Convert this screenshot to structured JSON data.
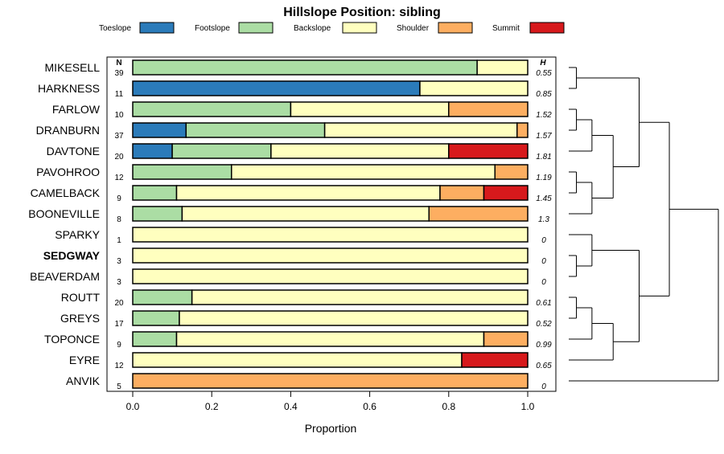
{
  "chart_data": {
    "type": "bar",
    "subtype": "stacked-horizontal-proportion",
    "title": "Hillslope Position: sibling",
    "xlabel": "Proportion",
    "xlim": [
      0,
      1
    ],
    "x_ticks": [
      "0.0",
      "0.2",
      "0.4",
      "0.6",
      "0.8",
      "1.0"
    ],
    "n_header": "N",
    "h_header": "H",
    "legend": [
      {
        "name": "Toeslope",
        "color": "#2b7bba"
      },
      {
        "name": "Footslope",
        "color": "#abdda4"
      },
      {
        "name": "Backslope",
        "color": "#ffffbf"
      },
      {
        "name": "Shoulder",
        "color": "#fdae61"
      },
      {
        "name": "Summit",
        "color": "#d7191c"
      }
    ],
    "highlight": "SEDGWAY",
    "categories": [
      "MIKESELL",
      "HARKNESS",
      "FARLOW",
      "DRANBURN",
      "DAVTONE",
      "PAVOHROO",
      "CAMELBACK",
      "BOONEVILLE",
      "SPARKY",
      "SEDGWAY",
      "BEAVERDAM",
      "ROUTT",
      "GREYS",
      "TOPONCE",
      "EYRE",
      "ANVIK"
    ],
    "n": [
      "39",
      "11",
      "10",
      "37",
      "20",
      "12",
      "9",
      "8",
      "1",
      "3",
      "3",
      "20",
      "17",
      "9",
      "12",
      "5"
    ],
    "h": [
      "0.55",
      "0.85",
      "1.52",
      "1.57",
      "1.81",
      "1.19",
      "1.45",
      "1.3",
      "0",
      "0",
      "0",
      "0.61",
      "0.52",
      "0.99",
      "0.65",
      "0"
    ],
    "series": [
      {
        "name": "Toeslope",
        "values": [
          0,
          0.727,
          0,
          0.135,
          0.1,
          0,
          0,
          0,
          0,
          0,
          0,
          0,
          0,
          0,
          0,
          0
        ]
      },
      {
        "name": "Footslope",
        "values": [
          0.872,
          0,
          0.4,
          0.351,
          0.25,
          0.25,
          0.111,
          0.125,
          0,
          0,
          0,
          0.15,
          0.118,
          0.111,
          0,
          0
        ]
      },
      {
        "name": "Backslope",
        "values": [
          0.128,
          0.273,
          0.4,
          0.487,
          0.45,
          0.667,
          0.667,
          0.625,
          1,
          1,
          1,
          0.85,
          0.882,
          0.778,
          0.833,
          0
        ]
      },
      {
        "name": "Shoulder",
        "values": [
          0,
          0,
          0.2,
          0.027,
          0,
          0.083,
          0.111,
          0.25,
          0,
          0,
          0,
          0,
          0,
          0.111,
          0,
          1
        ]
      },
      {
        "name": "Summit",
        "values": [
          0,
          0,
          0,
          0,
          0.2,
          0,
          0.111,
          0,
          0,
          0,
          0,
          0,
          0,
          0,
          0.167,
          0
        ]
      }
    ],
    "dendrogram": {
      "description": "hierarchical clustering of series by hillslope position proportions",
      "tree": [
        [
          [
            [
              "MIKESELL",
              "HARKNESS"
            ],
            [
              [
                [
                  "FARLOW",
                  "DRANBURN"
                ],
                "DAVTONE"
              ],
              [
                [
                  "PAVOHROO",
                  "CAMELBACK"
                ],
                "BOONEVILLE"
              ]
            ]
          ],
          [
            [
              "SPARKY",
              [
                "SEDGWAY",
                "BEAVERDAM"
              ]
            ],
            [
              [
                [
                  "ROUTT",
                  "GREYS"
                ],
                "TOPONCE"
              ],
              "EYRE"
            ]
          ]
        ],
        "ANVIK"
      ],
      "heights": [
        0.02,
        0.03,
        0.05,
        0.08,
        0.1,
        0.12,
        0.14,
        0.18,
        0.28,
        0.4,
        0.5,
        0.6,
        0.85,
        1.0
      ]
    }
  }
}
